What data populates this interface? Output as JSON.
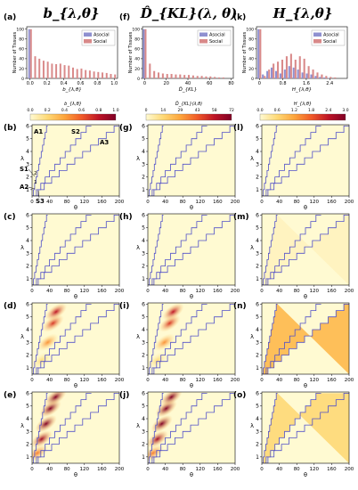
{
  "column_titles": [
    "b_{λ,θ}",
    "D̂_{KL}(λ, θ)",
    "H_{λ,θ}"
  ],
  "panel_labels": {
    "histograms": [
      "(a)",
      "(f)",
      "(k)"
    ],
    "rows": [
      [
        "(b)",
        "(g)",
        "(l)"
      ],
      [
        "(c)",
        "(h)",
        "(m)"
      ],
      [
        "(d)",
        "(i)",
        "(n)"
      ],
      [
        "(e)",
        "(j)",
        "(o)"
      ]
    ]
  },
  "region_labels": {
    "A1": "A1",
    "A2": "A2",
    "A3": "A3",
    "S1": "S1",
    "S2": "S2",
    "S3": "S3",
    "one": "1",
    "two": "2"
  },
  "colorbars": [
    {
      "label": "b_{λ,θ}",
      "ticks": [
        "0.0",
        "0.2",
        "0.4",
        "0.6",
        "0.8",
        "1.0"
      ]
    },
    {
      "label": "D̂_{KL}(λ,θ)",
      "ticks": [
        "0",
        "14",
        "29",
        "43",
        "58",
        "72"
      ]
    },
    {
      "label": "H_{λ,θ}",
      "ticks": [
        "0.0",
        "0.6",
        "1.2",
        "1.8",
        "2.4",
        "3.0"
      ]
    }
  ],
  "colors": {
    "asocial": "#8f90d0",
    "social": "#d98a8a",
    "boundary": "#5050c8",
    "cmap_low": "#fffad2",
    "cmap_high": "#800026"
  },
  "chart_data": [
    {
      "type": "bar",
      "panel": "(a)",
      "xlabel": "b_{λ,θ}",
      "ylabel": "Number of Tissues",
      "xticks": [
        "0.0",
        "0.2",
        "0.4",
        "0.6",
        "0.8",
        "1.0"
      ],
      "yticks": [
        "0",
        "20",
        "40",
        "60",
        "80",
        "100"
      ],
      "xlim": [
        -0.04,
        1.04
      ],
      "ylim": [
        0,
        105
      ],
      "legend": [
        "Asocial",
        "Social"
      ],
      "legend_position": "top-right",
      "x": [
        0.0,
        0.05,
        0.1,
        0.15,
        0.2,
        0.25,
        0.3,
        0.35,
        0.4,
        0.45,
        0.5,
        0.55,
        0.6,
        0.65,
        0.7,
        0.75,
        0.8,
        0.85,
        0.9,
        0.95,
        1.0
      ],
      "series": [
        {
          "name": "Asocial",
          "values": [
            100,
            0,
            0,
            0,
            0,
            0,
            0,
            0,
            0,
            0,
            0,
            0,
            0,
            0,
            0,
            0,
            0,
            0,
            0,
            0,
            0
          ]
        },
        {
          "name": "Social",
          "values": [
            100,
            45,
            40,
            36,
            34,
            30,
            29,
            30,
            27,
            26,
            22,
            19,
            20,
            17,
            16,
            14,
            13,
            12,
            11,
            9,
            8
          ]
        }
      ]
    },
    {
      "type": "bar",
      "panel": "(f)",
      "xlabel": "D̂_{KL}",
      "ylabel": "Number of Tissues",
      "xticks": [
        "0",
        "20",
        "40",
        "60",
        "80"
      ],
      "yticks": [
        "0",
        "20",
        "40",
        "60",
        "80",
        "100"
      ],
      "xlim": [
        -2,
        82
      ],
      "ylim": [
        0,
        105
      ],
      "legend": [
        "Asocial",
        "Social"
      ],
      "legend_position": "top-right",
      "x": [
        0,
        4,
        8,
        12,
        16,
        20,
        24,
        28,
        32,
        36,
        40,
        44,
        48,
        52,
        56,
        60,
        64,
        68,
        72
      ],
      "series": [
        {
          "name": "Asocial",
          "values": [
            100,
            0,
            0,
            0,
            0,
            0,
            0,
            0,
            0,
            0,
            0,
            0,
            0,
            0,
            0,
            0,
            0,
            0,
            0
          ]
        },
        {
          "name": "Social",
          "values": [
            100,
            30,
            15,
            12,
            10,
            9,
            9,
            8,
            8,
            7,
            7,
            6,
            5,
            5,
            4,
            4,
            3,
            2,
            2
          ]
        }
      ]
    },
    {
      "type": "bar",
      "panel": "(k)",
      "xlabel": "H_{λ,θ}",
      "ylabel": "Number of Tissues",
      "xticks": [
        "0",
        "0.8",
        "1.6",
        "2.4"
      ],
      "yticks": [
        "0",
        "20",
        "40",
        "60",
        "80",
        "100"
      ],
      "xlim": [
        -0.1,
        3.0
      ],
      "ylim": [
        0,
        105
      ],
      "legend": [
        "Asocial",
        "Social"
      ],
      "legend_position": "top-right",
      "x": [
        0.0,
        0.15,
        0.3,
        0.45,
        0.6,
        0.75,
        0.9,
        1.05,
        1.2,
        1.35,
        1.5,
        1.65,
        1.8,
        1.95,
        2.1,
        2.25,
        2.4,
        2.55
      ],
      "series": [
        {
          "name": "Asocial",
          "values": [
            100,
            8,
            15,
            22,
            15,
            10,
            18,
            25,
            22,
            18,
            12,
            10,
            8,
            5,
            3,
            2,
            1,
            0
          ]
        },
        {
          "name": "Social",
          "values": [
            100,
            5,
            18,
            30,
            34,
            38,
            45,
            50,
            38,
            45,
            40,
            25,
            18,
            12,
            8,
            5,
            3,
            2
          ]
        }
      ]
    },
    {
      "type": "heatmap",
      "panels": [
        "(b)",
        "(c)",
        "(d)",
        "(e)",
        "(g)",
        "(h)",
        "(i)",
        "(j)",
        "(l)",
        "(m)",
        "(n)",
        "(o)"
      ],
      "xlabel": "θ",
      "ylabel": "λ",
      "xticks": [
        "0",
        "40",
        "80",
        "120",
        "160",
        "200"
      ],
      "yticks": [
        "1",
        "2",
        "3",
        "4",
        "5",
        "6"
      ],
      "xlim": [
        0,
        200
      ],
      "ylim": [
        0.5,
        6.1
      ],
      "boundaries": [
        [
          [
            0,
            0.5
          ],
          [
            3,
            0.5
          ],
          [
            3,
            1.0
          ],
          [
            6,
            1.0
          ],
          [
            6,
            1.5
          ],
          [
            9,
            1.5
          ],
          [
            9,
            2.0
          ],
          [
            12,
            2.0
          ],
          [
            12,
            2.5
          ],
          [
            15,
            2.5
          ],
          [
            15,
            3.0
          ],
          [
            18,
            3.0
          ],
          [
            18,
            3.5
          ],
          [
            21,
            3.5
          ],
          [
            21,
            4.0
          ],
          [
            24,
            4.0
          ],
          [
            24,
            4.5
          ],
          [
            27,
            4.5
          ],
          [
            27,
            5.0
          ],
          [
            30,
            5.0
          ],
          [
            30,
            5.5
          ],
          [
            33,
            5.5
          ],
          [
            33,
            6.0
          ],
          [
            36,
            6.0
          ]
        ],
        [
          [
            0,
            0.5
          ],
          [
            10,
            0.5
          ],
          [
            10,
            1.0
          ],
          [
            20,
            1.0
          ],
          [
            20,
            1.5
          ],
          [
            30,
            1.5
          ],
          [
            30,
            2.0
          ],
          [
            40,
            2.0
          ],
          [
            40,
            2.5
          ],
          [
            52,
            2.5
          ],
          [
            52,
            3.0
          ],
          [
            64,
            3.0
          ],
          [
            64,
            3.5
          ],
          [
            76,
            3.5
          ],
          [
            76,
            4.0
          ],
          [
            88,
            4.0
          ],
          [
            88,
            4.5
          ],
          [
            100,
            4.5
          ],
          [
            100,
            5.0
          ],
          [
            112,
            5.0
          ],
          [
            112,
            5.5
          ],
          [
            124,
            5.5
          ],
          [
            124,
            6.0
          ],
          [
            136,
            6.0
          ]
        ],
        [
          [
            0,
            0.5
          ],
          [
            14,
            0.5
          ],
          [
            14,
            1.0
          ],
          [
            28,
            1.0
          ],
          [
            28,
            1.5
          ],
          [
            45,
            1.5
          ],
          [
            45,
            2.0
          ],
          [
            62,
            2.0
          ],
          [
            62,
            2.5
          ],
          [
            80,
            2.5
          ],
          [
            80,
            3.0
          ],
          [
            98,
            3.0
          ],
          [
            98,
            3.5
          ],
          [
            116,
            3.5
          ],
          [
            116,
            4.0
          ],
          [
            134,
            4.0
          ],
          [
            134,
            4.5
          ],
          [
            152,
            4.5
          ],
          [
            152,
            5.0
          ],
          [
            170,
            5.0
          ],
          [
            170,
            5.5
          ],
          [
            188,
            5.5
          ],
          [
            188,
            6.0
          ],
          [
            200,
            6.0
          ]
        ]
      ],
      "row_blobs": [
        {
          "b": [],
          "d": [],
          "h": []
        },
        {
          "b": [],
          "d": [],
          "h": [
            {
              "shape": "region",
              "upper": 2,
              "intensity": 0.04
            }
          ]
        },
        {
          "b": [
            {
              "theta": 22,
              "lambda": 1.6,
              "intensity": 0.18
            },
            {
              "theta": 36,
              "lambda": 3.0,
              "intensity": 0.45
            },
            {
              "theta": 48,
              "lambda": 4.5,
              "intensity": 0.7
            },
            {
              "theta": 55,
              "lambda": 5.4,
              "intensity": 0.8
            }
          ],
          "d": [
            {
              "theta": 22,
              "lambda": 1.6,
              "intensity": 0.18
            },
            {
              "theta": 38,
              "lambda": 3.0,
              "intensity": 0.45
            },
            {
              "theta": 50,
              "lambda": 4.5,
              "intensity": 0.7
            },
            {
              "theta": 58,
              "lambda": 5.4,
              "intensity": 0.8
            }
          ],
          "h": [
            {
              "shape": "region",
              "upper": 2,
              "intensity": 0.3
            }
          ]
        },
        {
          "b": [
            {
              "theta": 12,
              "lambda": 1.3,
              "intensity": 0.5
            },
            {
              "theta": 22,
              "lambda": 2.4,
              "intensity": 0.9
            },
            {
              "theta": 32,
              "lambda": 3.6,
              "intensity": 1.0
            },
            {
              "theta": 42,
              "lambda": 4.8,
              "intensity": 1.0
            },
            {
              "theta": 54,
              "lambda": 5.7,
              "intensity": 1.0
            }
          ],
          "d": [
            {
              "theta": 12,
              "lambda": 1.3,
              "intensity": 0.5
            },
            {
              "theta": 22,
              "lambda": 2.4,
              "intensity": 0.9
            },
            {
              "theta": 32,
              "lambda": 3.6,
              "intensity": 1.0
            },
            {
              "theta": 42,
              "lambda": 4.8,
              "intensity": 1.0
            },
            {
              "theta": 54,
              "lambda": 5.7,
              "intensity": 1.0
            }
          ],
          "h": [
            {
              "shape": "region",
              "upper": 1,
              "intensity": 0.18
            }
          ]
        }
      ]
    }
  ]
}
